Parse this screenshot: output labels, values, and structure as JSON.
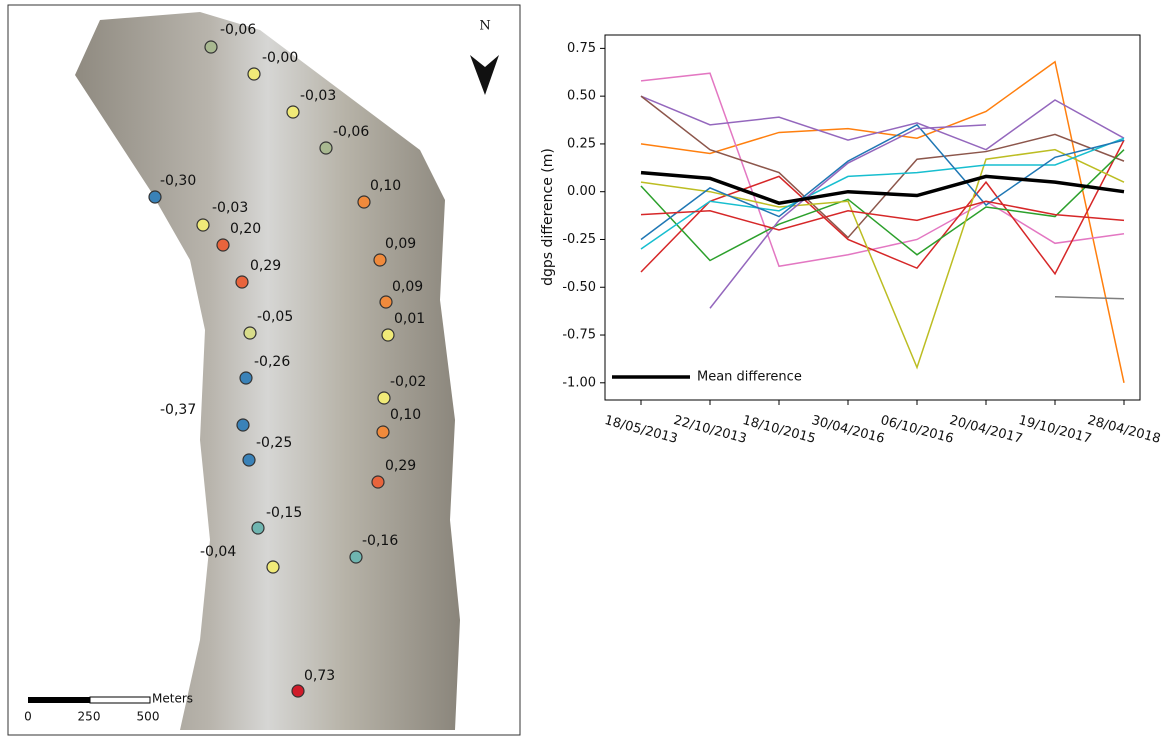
{
  "chart_data": [
    {
      "type": "map",
      "north": "N",
      "scale_bar": {
        "labels": [
          "0",
          "250",
          "500"
        ],
        "unit": "Meters"
      },
      "points": [
        {
          "label": "-0,06",
          "color": "#a8b890"
        },
        {
          "label": "-0,00",
          "color": "#f0ea78"
        },
        {
          "label": "-0,03",
          "color": "#f0ea78"
        },
        {
          "label": "-0,06",
          "color": "#a8b890"
        },
        {
          "label": "-0,30",
          "color": "#3a82b8"
        },
        {
          "label": "0,10",
          "color": "#f08a3c"
        },
        {
          "label": "-0,03",
          "color": "#f0ea78"
        },
        {
          "label": "0,20",
          "color": "#e8643c"
        },
        {
          "label": "0,09",
          "color": "#f08a3c"
        },
        {
          "label": "0,29",
          "color": "#e8643c"
        },
        {
          "label": "0,09",
          "color": "#f08a3c"
        },
        {
          "label": "-0,05",
          "color": "#d8dc8a"
        },
        {
          "label": "0,01",
          "color": "#f0ea78"
        },
        {
          "label": "-0,26",
          "color": "#3a82b8"
        },
        {
          "label": "-0,02",
          "color": "#f0ea78"
        },
        {
          "label": "-0,37",
          "color": "#3a82b8"
        },
        {
          "label": "0,10",
          "color": "#f08a3c"
        },
        {
          "label": "-0,25",
          "color": "#3a82b8"
        },
        {
          "label": "0,29",
          "color": "#e8643c"
        },
        {
          "label": "-0,15",
          "color": "#6fb5b0"
        },
        {
          "label": "-0,16",
          "color": "#6fb5b0"
        },
        {
          "label": "-0,04",
          "color": "#f0ea78"
        },
        {
          "label": "0,73",
          "color": "#d01c2a"
        }
      ]
    },
    {
      "type": "line",
      "y_label": "dgps difference (m)",
      "categories": [
        "18/05/2013",
        "22/10/2013",
        "18/10/2015",
        "30/04/2016",
        "06/10/2016",
        "20/04/2017",
        "19/10/2017",
        "28/04/2018"
      ],
      "ylim": [
        -1.09,
        0.82
      ],
      "yticks": [
        {
          "value": -1,
          "label": "-1.00"
        },
        -0.75,
        {
          "value": -0.5,
          "label": "-0.50"
        },
        -0.25,
        {
          "value": 0,
          "label": "0.00"
        },
        0.25,
        {
          "value": 0.5,
          "label": "0.50"
        },
        0.75
      ],
      "legend": "lower left",
      "series": [
        {
          "color": "#ff7f0e",
          "values": [
            0.25,
            0.2,
            0.31,
            0.33,
            0.28,
            0.42,
            0.68,
            -1.0
          ]
        },
        {
          "color": "#e377c2",
          "values": [
            0.58,
            0.62,
            -0.39,
            -0.33,
            -0.25,
            -0.05,
            -0.27,
            -0.22
          ]
        },
        {
          "color": "#9467bd",
          "values": [
            0.5,
            0.35,
            0.39,
            0.27,
            0.36,
            0.22,
            0.48,
            0.28
          ]
        },
        {
          "color": "#8c564b",
          "values": [
            0.5,
            0.22,
            0.1,
            -0.24,
            0.17,
            0.21,
            0.3,
            0.16
          ]
        },
        {
          "color": "#d62728",
          "values": [
            -0.42,
            -0.05,
            0.08,
            -0.25,
            -0.4,
            0.05,
            -0.43,
            0.27
          ]
        },
        {
          "color": "#2ca02c",
          "values": [
            0.03,
            -0.36,
            -0.17,
            -0.04,
            -0.33,
            -0.08,
            -0.13,
            0.22
          ]
        },
        {
          "color": "#bcbd22",
          "values": [
            0.05,
            0.0,
            -0.08,
            -0.05,
            -0.92,
            0.17,
            0.22,
            0.05
          ]
        },
        {
          "color": "#17becf",
          "values": [
            -0.3,
            -0.05,
            -0.1,
            0.08,
            0.1,
            0.14,
            0.14,
            0.28
          ]
        },
        {
          "color": "#1f77b4",
          "values": [
            -0.25,
            0.02,
            -0.13,
            0.16,
            0.35,
            -0.07,
            0.18,
            0.27
          ]
        },
        {
          "color": "#7f7f7f",
          "values": [
            null,
            null,
            null,
            null,
            null,
            null,
            -0.55,
            -0.56
          ]
        },
        {
          "color": "#9467bd",
          "values": [
            null,
            -0.61,
            -0.15,
            0.15,
            0.33,
            0.35,
            null,
            null
          ]
        },
        {
          "color": "#d62728",
          "values": [
            -0.12,
            -0.1,
            -0.2,
            -0.1,
            -0.15,
            -0.05,
            -0.12,
            -0.15
          ]
        },
        {
          "name": "Mean difference",
          "color": "#000000",
          "values": [
            0.1,
            0.07,
            -0.06,
            0.0,
            -0.02,
            0.08,
            0.05,
            0.0
          ]
        }
      ]
    }
  ]
}
